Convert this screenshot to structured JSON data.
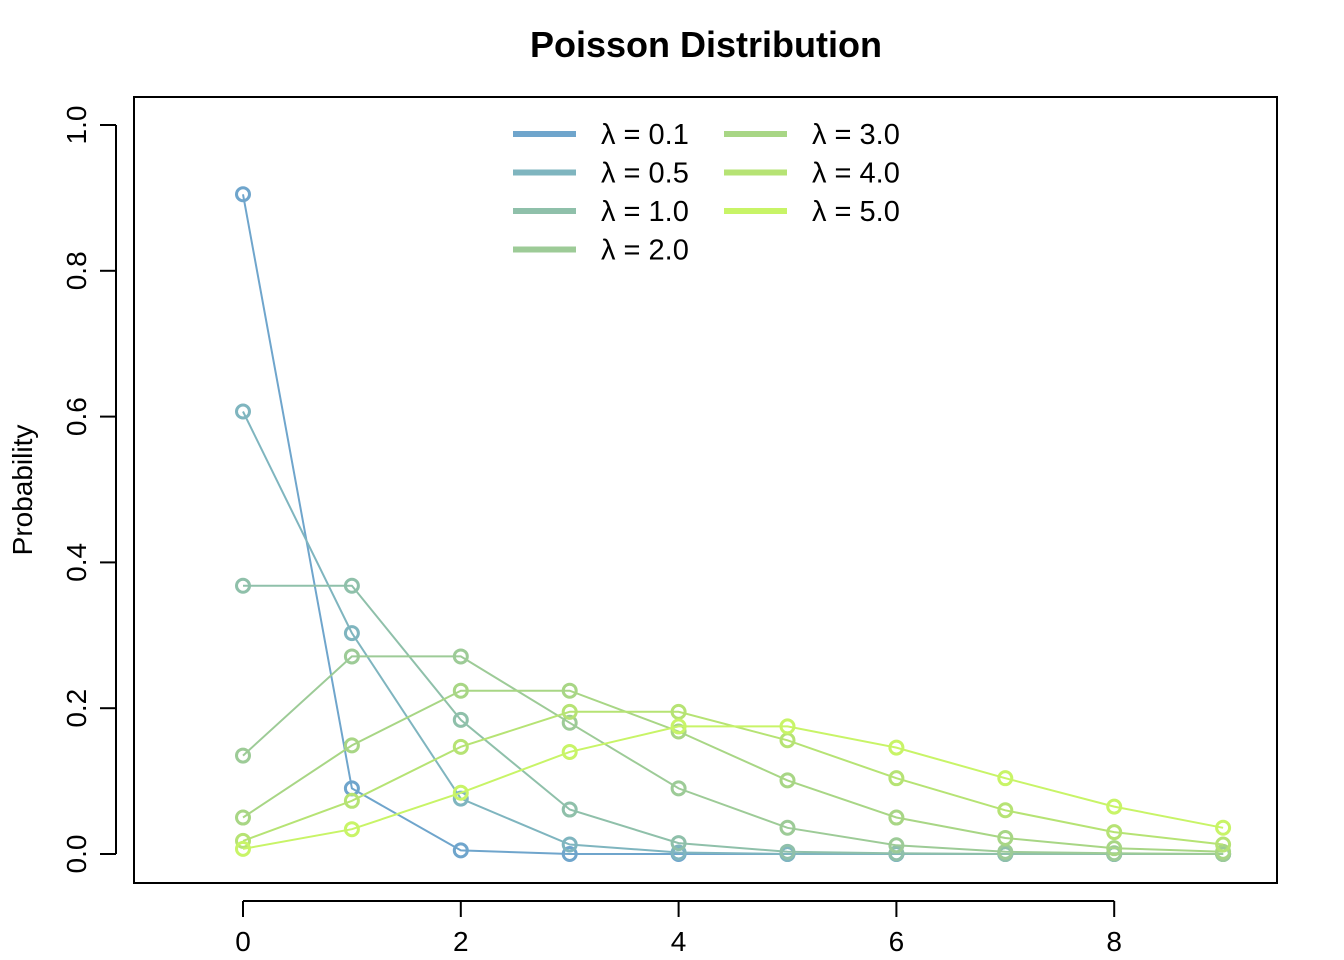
{
  "chart_data": {
    "type": "line",
    "title": "Poisson Distribution",
    "xlabel": "",
    "ylabel": "Probability",
    "xlim": [
      -1,
      9.5
    ],
    "ylim": [
      0,
      1.0
    ],
    "x_ticks": [
      0,
      2,
      4,
      6,
      8
    ],
    "y_ticks": [
      0.0,
      0.2,
      0.4,
      0.6,
      0.8,
      1.0
    ],
    "y_tick_labels": [
      "0.0",
      "0.2",
      "0.4",
      "0.6",
      "0.8",
      "1.0"
    ],
    "x_tick_labels": [
      "0",
      "2",
      "4",
      "6",
      "8"
    ],
    "grid": false,
    "legend_position": "top-center",
    "legend_columns": 2,
    "markers": "open-circle",
    "x": [
      0,
      1,
      2,
      3,
      4,
      5,
      6,
      7,
      8,
      9
    ],
    "series": [
      {
        "name": "λ = 0.1",
        "color": "#6fa5cc",
        "values": [
          0.905,
          0.09,
          0.005,
          0.0,
          0.0,
          0.0,
          0.0,
          0.0,
          0.0,
          0.0
        ]
      },
      {
        "name": "λ = 0.5",
        "color": "#7fb5bf",
        "values": [
          0.607,
          0.303,
          0.076,
          0.013,
          0.002,
          0.0,
          0.0,
          0.0,
          0.0,
          0.0
        ]
      },
      {
        "name": "λ = 1.0",
        "color": "#8fc0aa",
        "values": [
          0.368,
          0.368,
          0.184,
          0.061,
          0.015,
          0.003,
          0.001,
          0.0,
          0.0,
          0.0
        ]
      },
      {
        "name": "λ = 2.0",
        "color": "#9dcb97",
        "values": [
          0.135,
          0.271,
          0.271,
          0.18,
          0.09,
          0.036,
          0.012,
          0.003,
          0.001,
          0.0
        ]
      },
      {
        "name": "λ = 3.0",
        "color": "#a8d685",
        "values": [
          0.05,
          0.149,
          0.224,
          0.224,
          0.168,
          0.101,
          0.05,
          0.022,
          0.008,
          0.003
        ]
      },
      {
        "name": "λ = 4.0",
        "color": "#b6e374",
        "values": [
          0.018,
          0.073,
          0.147,
          0.195,
          0.195,
          0.156,
          0.104,
          0.06,
          0.03,
          0.013
        ]
      },
      {
        "name": "λ = 5.0",
        "color": "#c8f467",
        "values": [
          0.007,
          0.034,
          0.084,
          0.14,
          0.175,
          0.175,
          0.146,
          0.104,
          0.065,
          0.036
        ]
      }
    ]
  }
}
